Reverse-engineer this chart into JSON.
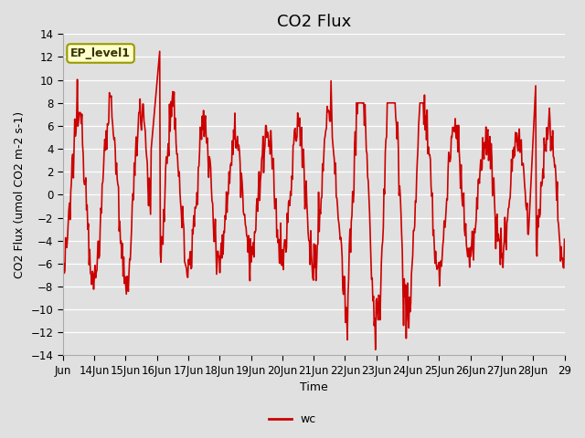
{
  "title": "CO2 Flux",
  "ylabel": "CO2 Flux (umol CO2 m-2 s-1)",
  "xlabel": "Time",
  "ylim": [
    -14,
    14
  ],
  "yticks": [
    -14,
    -12,
    -10,
    -8,
    -6,
    -4,
    -2,
    0,
    2,
    4,
    6,
    8,
    10,
    12,
    14
  ],
  "line_color": "#cc0000",
  "line_width": 1.2,
  "background_color": "#e0e0e0",
  "legend_label": "wc",
  "annotation_text": "EP_level1",
  "annotation_bg": "#ffffcc",
  "annotation_border": "#999900",
  "title_fontsize": 13,
  "label_fontsize": 9,
  "tick_fontsize": 8.5,
  "x_start_day": 13,
  "x_end_day": 29,
  "xtick_days": [
    13,
    14,
    15,
    16,
    17,
    18,
    19,
    20,
    21,
    22,
    23,
    24,
    25,
    26,
    27,
    28,
    29
  ],
  "xtick_labels": [
    "Jun",
    "14Jun",
    "15Jun",
    "16Jun",
    "17Jun",
    "18Jun",
    "19Jun",
    "20Jun",
    "21Jun",
    "22Jun",
    "23Jun",
    "24Jun",
    "25Jun",
    "26Jun",
    "27Jun",
    "28Jun",
    "29"
  ]
}
